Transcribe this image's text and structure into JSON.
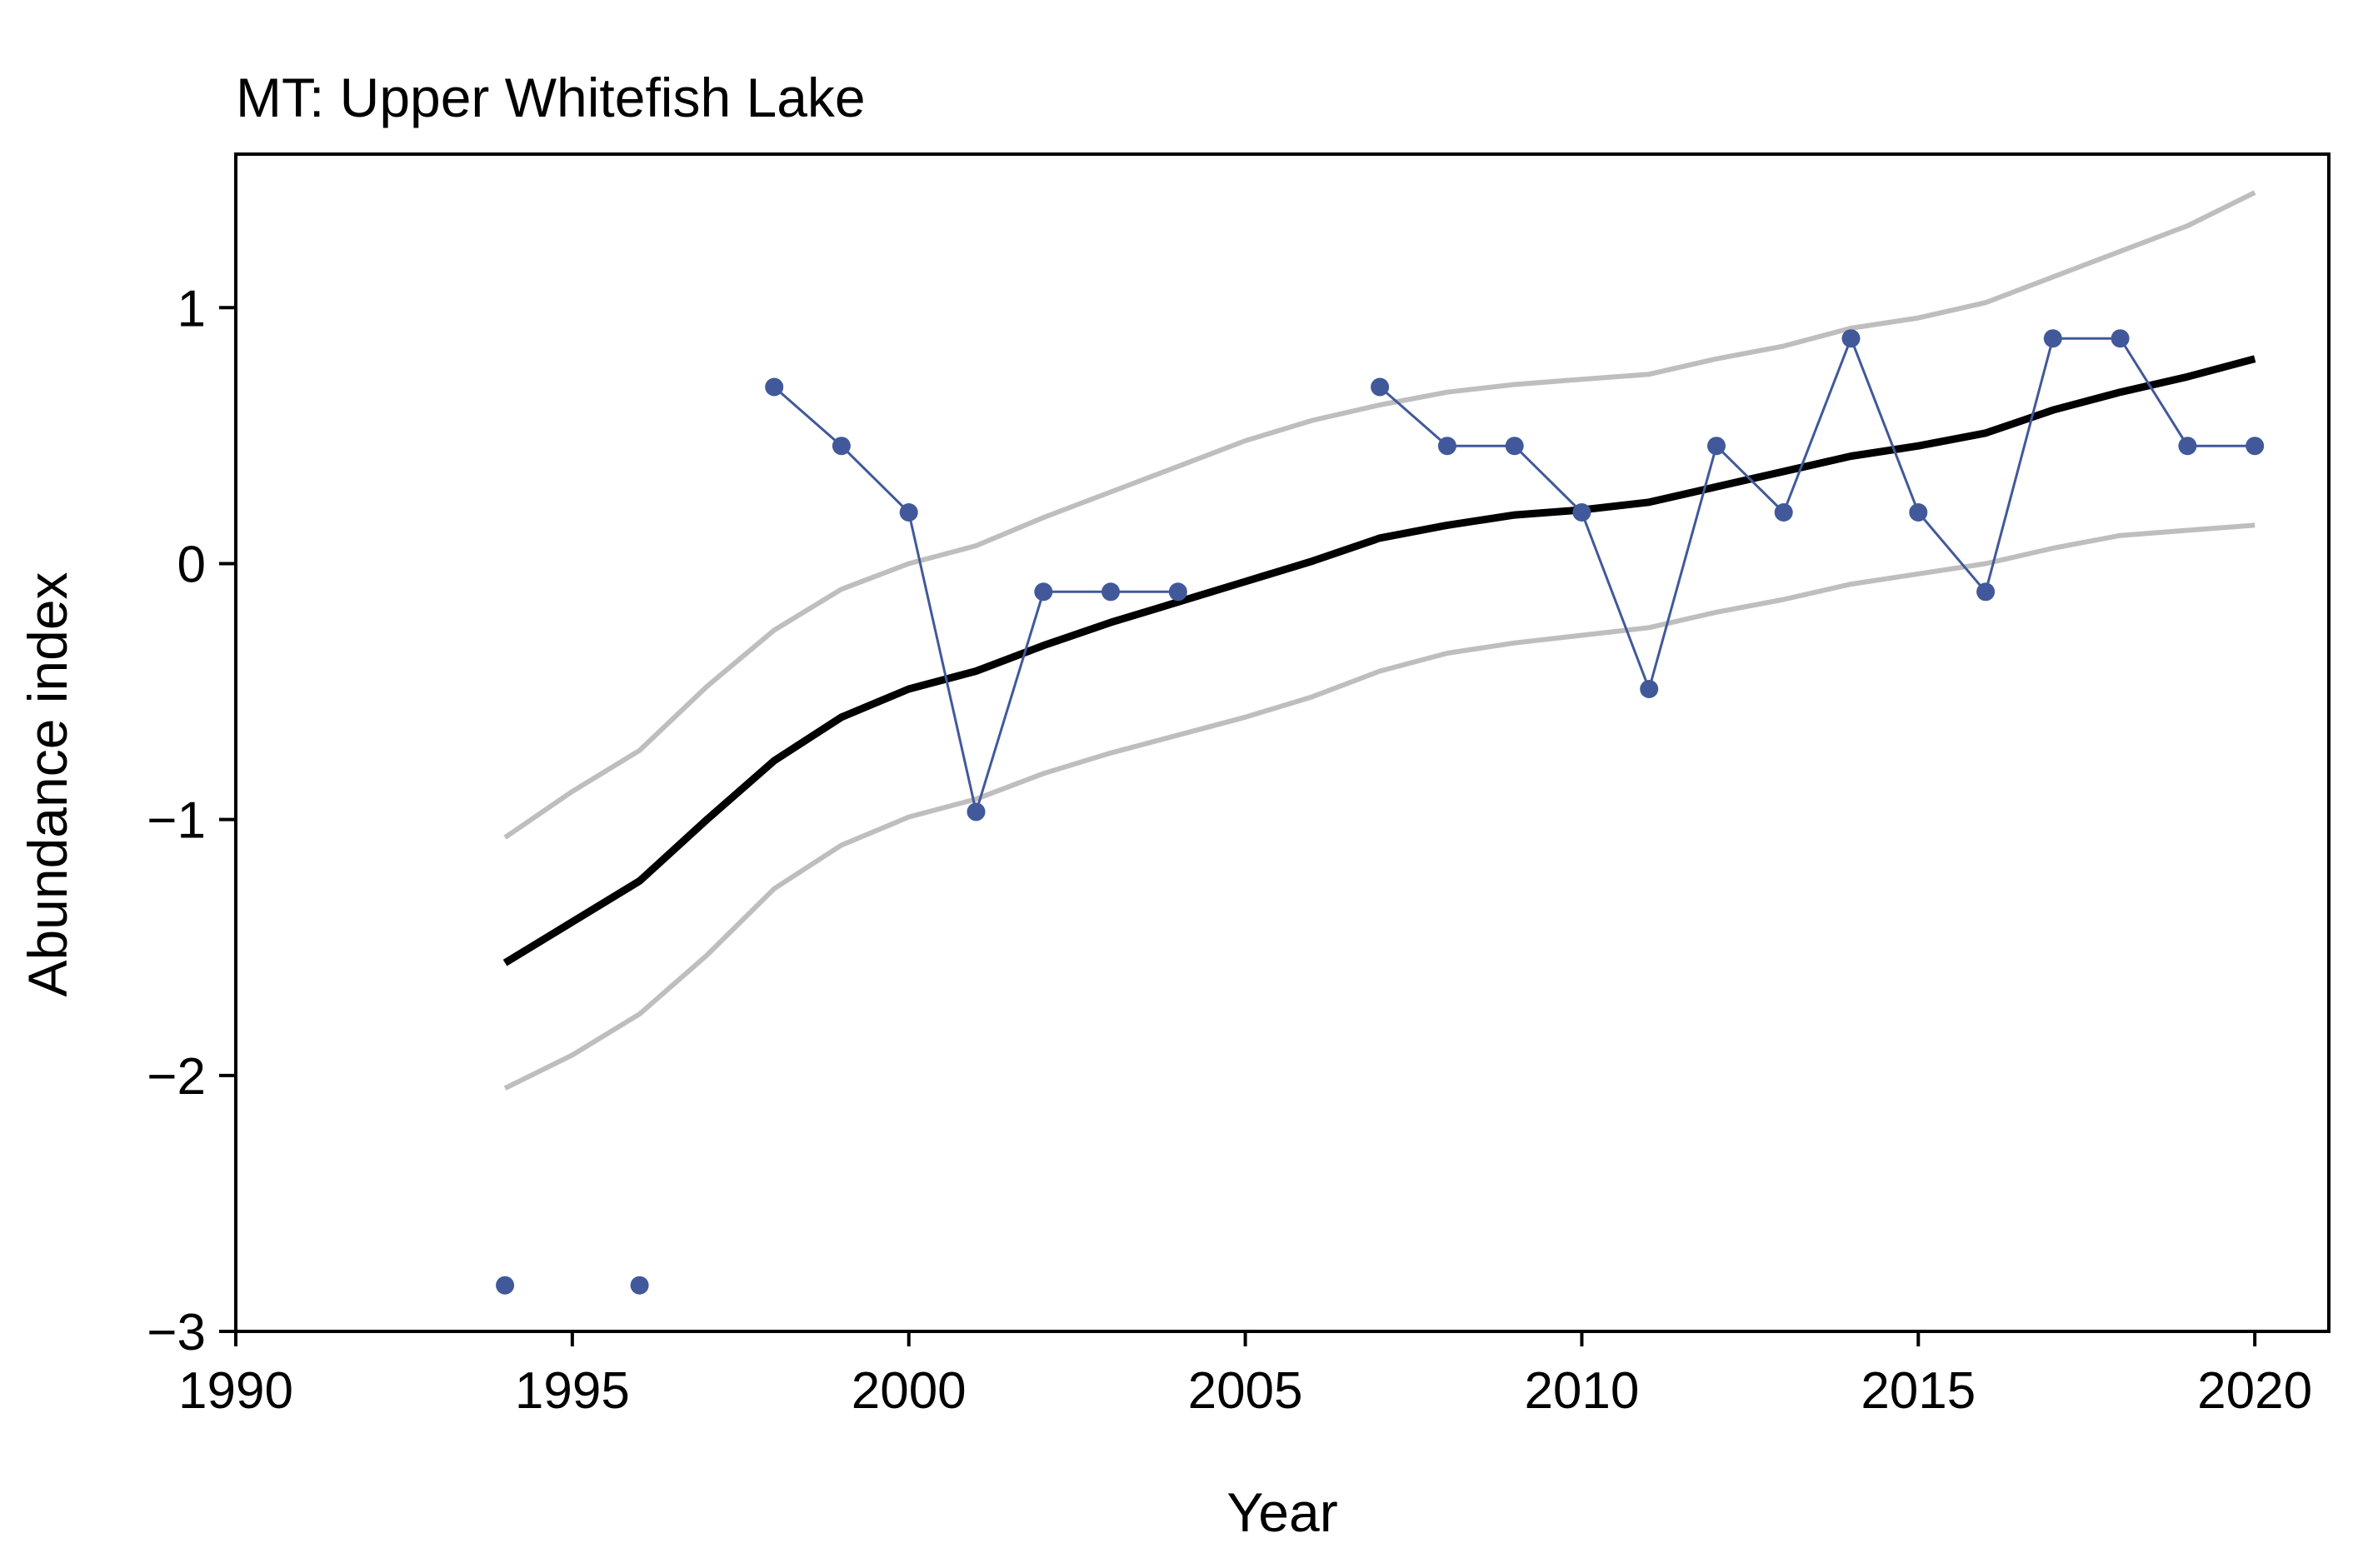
{
  "chart_data": {
    "type": "line",
    "title": "MT: Upper Whitefish Lake",
    "xlabel": "Year",
    "ylabel": "Abundance index",
    "xlim": [
      1990,
      2021.1
    ],
    "ylim": [
      -3,
      1.6
    ],
    "xticks": [
      1990,
      1995,
      2000,
      2005,
      2010,
      2015,
      2020
    ],
    "yticks": [
      -3,
      -2,
      -1,
      0,
      1
    ],
    "ytick_labels": [
      "−3",
      "−2",
      "−1",
      "0",
      "1"
    ],
    "grid": false,
    "colors": {
      "observed": "#41599a",
      "trend": "#000000",
      "bounds": "#bebebe"
    },
    "series": [
      {
        "role": "observed",
        "x": [
          1994,
          1996,
          1998,
          1999,
          2000,
          2001,
          2002,
          2003,
          2004,
          2007,
          2008,
          2009,
          2010,
          2011,
          2012,
          2013,
          2014,
          2015,
          2016,
          2017,
          2018,
          2019,
          2020
        ],
        "y": [
          -2.82,
          -2.82,
          0.69,
          0.46,
          0.2,
          -0.97,
          -0.11,
          -0.11,
          -0.11,
          0.69,
          0.46,
          0.46,
          0.2,
          -0.49,
          0.46,
          0.2,
          0.88,
          0.2,
          -0.11,
          0.88,
          0.88,
          0.46,
          0.46
        ],
        "segments": [
          [
            2,
            8
          ],
          [
            9,
            22
          ]
        ]
      },
      {
        "role": "trend",
        "x": [
          1994,
          1995,
          1996,
          1997,
          1998,
          1999,
          2000,
          2001,
          2002,
          2003,
          2004,
          2005,
          2006,
          2007,
          2008,
          2009,
          2010,
          2011,
          2012,
          2013,
          2014,
          2015,
          2016,
          2017,
          2018,
          2019,
          2020
        ],
        "y": [
          -1.56,
          -1.4,
          -1.24,
          -1.0,
          -0.77,
          -0.6,
          -0.49,
          -0.42,
          -0.32,
          -0.23,
          -0.15,
          -0.07,
          0.01,
          0.1,
          0.15,
          0.19,
          0.21,
          0.24,
          0.3,
          0.36,
          0.42,
          0.46,
          0.51,
          0.6,
          0.67,
          0.73,
          0.8
        ]
      },
      {
        "role": "upper",
        "x": [
          1994,
          1995,
          1996,
          1997,
          1998,
          1999,
          2000,
          2001,
          2002,
          2003,
          2004,
          2005,
          2006,
          2007,
          2008,
          2009,
          2010,
          2011,
          2012,
          2013,
          2014,
          2015,
          2016,
          2017,
          2018,
          2019,
          2020
        ],
        "y": [
          -1.07,
          -0.89,
          -0.73,
          -0.48,
          -0.26,
          -0.1,
          0.0,
          0.07,
          0.18,
          0.28,
          0.38,
          0.48,
          0.56,
          0.62,
          0.67,
          0.7,
          0.72,
          0.74,
          0.8,
          0.85,
          0.92,
          0.96,
          1.02,
          1.12,
          1.22,
          1.32,
          1.45
        ]
      },
      {
        "role": "lower",
        "x": [
          1994,
          1995,
          1996,
          1997,
          1998,
          1999,
          2000,
          2001,
          2002,
          2003,
          2004,
          2005,
          2006,
          2007,
          2008,
          2009,
          2010,
          2011,
          2012,
          2013,
          2014,
          2015,
          2016,
          2017,
          2018,
          2019,
          2020
        ],
        "y": [
          -2.05,
          -1.92,
          -1.76,
          -1.53,
          -1.27,
          -1.1,
          -0.99,
          -0.92,
          -0.82,
          -0.74,
          -0.67,
          -0.6,
          -0.52,
          -0.42,
          -0.35,
          -0.31,
          -0.28,
          -0.25,
          -0.19,
          -0.14,
          -0.08,
          -0.04,
          0.0,
          0.06,
          0.11,
          0.13,
          0.15
        ]
      }
    ]
  }
}
